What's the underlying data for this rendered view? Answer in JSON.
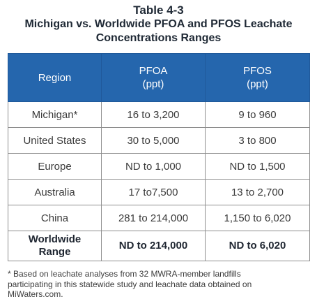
{
  "title": {
    "line1": "Table 4-3",
    "line2": "Michigan vs. Worldwide PFOA and PFOS Leachate",
    "line3": "Concentrations Ranges"
  },
  "table": {
    "headers": [
      {
        "main": "Region",
        "sub": ""
      },
      {
        "main": "PFOA",
        "sub": "(ppt)"
      },
      {
        "main": "PFOS",
        "sub": "(ppt)"
      }
    ],
    "rows": [
      {
        "region": "Michigan*",
        "pfoa": "16 to 3,200",
        "pfos": "9 to 960"
      },
      {
        "region": "United States",
        "pfoa": "30 to 5,000",
        "pfos": "3 to 800"
      },
      {
        "region": "Europe",
        "pfoa": "ND to 1,000",
        "pfos": "ND to 1,500"
      },
      {
        "region": "Australia",
        "pfoa": "17 to7,500",
        "pfos": "13 to 2,700"
      },
      {
        "region": "China",
        "pfoa": "281 to 214,000",
        "pfos": "1,150 to 6,020"
      }
    ],
    "total": {
      "region_line1": "Worldwide",
      "region_line2": "Range",
      "pfoa": "ND to 214,000",
      "pfos": "ND to 6,020"
    }
  },
  "footnote": {
    "line1": "* Based on leachate analyses from 32 MWRA-member landfills",
    "line2": "participating in this statewide study and leachate data obtained on",
    "line3": "MiWaters.com."
  }
}
